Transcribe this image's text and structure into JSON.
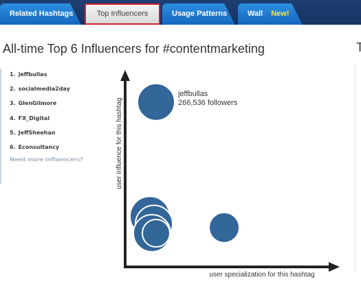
{
  "tabs": {
    "related_hashtags": "Related Hashtags",
    "top_influencers": "Top Influencers",
    "usage_patterns": "Usage Patterns",
    "wall": "Wall",
    "wall_badge": "New!"
  },
  "page_title": "All-time Top 6 Influencers for #contentmarketing",
  "edge_text": "T",
  "influencers": [
    {
      "rank": "1.",
      "name": "jeffbullas"
    },
    {
      "rank": "2.",
      "name": "socialmedia2day"
    },
    {
      "rank": "3.",
      "name": "GlenGilmore"
    },
    {
      "rank": "4.",
      "name": "FX_Digital"
    },
    {
      "rank": "5.",
      "name": "JeffSheehan"
    },
    {
      "rank": "6.",
      "name": "Econsultancy"
    }
  ],
  "more_link": "Need more influencers?",
  "colors": {
    "tab_blue": "#1f78d1",
    "active_tab_border": "#d4202b",
    "badge": "#ffe43a",
    "bubble": "#336699"
  },
  "chart_data": {
    "type": "scatter",
    "xlabel": "user specialization for this hashtag",
    "ylabel": "user influence for this hashtag",
    "annotation": {
      "name": "jeffbullas",
      "followers_text": "266,536 followers"
    },
    "xlim": [
      0,
      100
    ],
    "ylim": [
      0,
      100
    ],
    "points": [
      {
        "x": 15,
        "y": 88,
        "r": 27,
        "label": true
      },
      {
        "x": 12,
        "y": 27,
        "r": 29
      },
      {
        "x": 14,
        "y": 23,
        "r": 27
      },
      {
        "x": 13,
        "y": 18,
        "r": 27
      },
      {
        "x": 48,
        "y": 21,
        "r": 22
      },
      {
        "x": 15,
        "y": 18,
        "r": 20
      }
    ]
  }
}
